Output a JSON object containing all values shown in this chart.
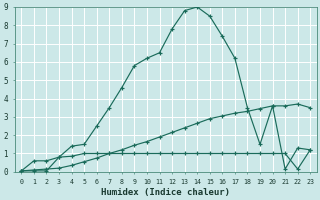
{
  "xlabel": "Humidex (Indice chaleur)",
  "bg_color": "#cce8e8",
  "grid_color": "#ffffff",
  "line_color": "#1a6b5a",
  "xlim": [
    -0.5,
    23.5
  ],
  "ylim": [
    0,
    9
  ],
  "xticks": [
    0,
    1,
    2,
    3,
    4,
    5,
    6,
    7,
    8,
    9,
    10,
    11,
    12,
    13,
    14,
    15,
    16,
    17,
    18,
    19,
    20,
    21,
    22,
    23
  ],
  "yticks": [
    0,
    1,
    2,
    3,
    4,
    5,
    6,
    7,
    8,
    9
  ],
  "curve_main_x": [
    0,
    1,
    2,
    3,
    4,
    5,
    6,
    7,
    8,
    9,
    10,
    11,
    12,
    13,
    14,
    15,
    16,
    17,
    18,
    19,
    20,
    21,
    22,
    23
  ],
  "curve_main_y": [
    0.05,
    0.05,
    0.05,
    0.8,
    1.4,
    1.5,
    2.5,
    3.5,
    4.6,
    5.8,
    6.2,
    6.5,
    7.8,
    8.8,
    9.0,
    8.5,
    7.4,
    6.2,
    3.5,
    1.5,
    3.6,
    0.15,
    1.3,
    1.2
  ],
  "curve_linear_x": [
    0,
    1,
    2,
    3,
    4,
    5,
    6,
    7,
    8,
    9,
    10,
    11,
    12,
    13,
    14,
    15,
    16,
    17,
    18,
    19,
    20,
    21,
    22,
    23
  ],
  "curve_linear_y": [
    0.05,
    0.1,
    0.15,
    0.2,
    0.35,
    0.55,
    0.75,
    1.0,
    1.2,
    1.45,
    1.65,
    1.9,
    2.15,
    2.4,
    2.65,
    2.9,
    3.05,
    3.2,
    3.3,
    3.45,
    3.6,
    3.6,
    3.7,
    3.5
  ],
  "curve_flat_x": [
    0,
    1,
    2,
    3,
    4,
    5,
    6,
    7,
    8,
    9,
    10,
    11,
    12,
    13,
    14,
    15,
    16,
    17,
    18,
    19,
    20,
    21,
    22,
    23
  ],
  "curve_flat_y": [
    0.05,
    0.6,
    0.6,
    0.8,
    0.85,
    1.0,
    1.0,
    1.0,
    1.0,
    1.0,
    1.0,
    1.0,
    1.0,
    1.0,
    1.0,
    1.0,
    1.0,
    1.0,
    1.0,
    1.0,
    1.0,
    1.0,
    0.15,
    1.2
  ]
}
